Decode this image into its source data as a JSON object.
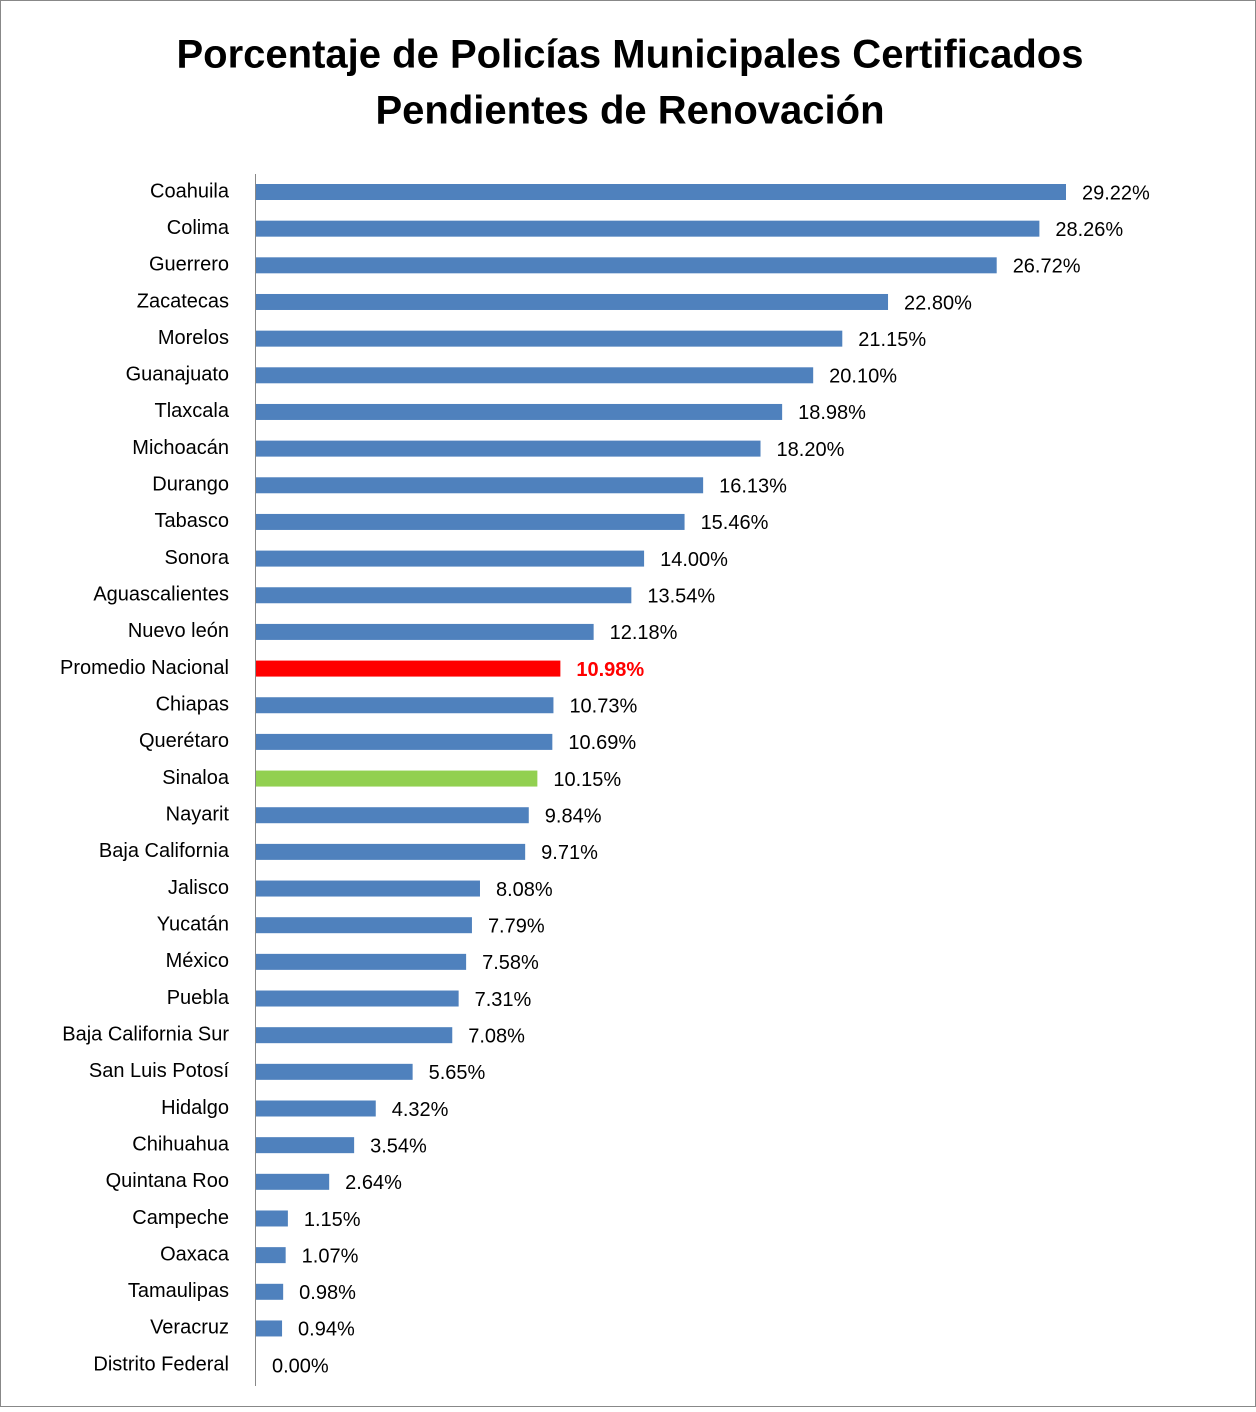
{
  "chart_data": {
    "type": "barh",
    "title": [
      "Porcentaje de Policías Municipales Certificados",
      "Pendientes de Renovación"
    ],
    "categories": [
      "Coahuila",
      "Colima",
      "Guerrero",
      "Zacatecas",
      "Morelos",
      "Guanajuato",
      "Tlaxcala",
      "Michoacán",
      "Durango",
      "Tabasco",
      "Sonora",
      "Aguascalientes",
      "Nuevo león",
      "Promedio Nacional",
      "Chiapas",
      "Querétaro",
      "Sinaloa",
      "Nayarit",
      "Baja California",
      "Jalisco",
      "Yucatán",
      "México",
      "Puebla",
      "Baja California Sur",
      "San Luis Potosí",
      "Hidalgo",
      "Chihuahua",
      "Quintana Roo",
      "Campeche",
      "Oaxaca",
      "Tamaulipas",
      "Veracruz",
      "Distrito Federal"
    ],
    "values": [
      29.22,
      28.26,
      26.72,
      22.8,
      21.15,
      20.1,
      18.98,
      18.2,
      16.13,
      15.46,
      14.0,
      13.54,
      12.18,
      10.98,
      10.73,
      10.69,
      10.15,
      9.84,
      9.71,
      8.08,
      7.79,
      7.58,
      7.31,
      7.08,
      5.65,
      4.32,
      3.54,
      2.64,
      1.15,
      1.07,
      0.98,
      0.94,
      0.0
    ],
    "value_labels": [
      "29.22%",
      "28.26%",
      "26.72%",
      "22.80%",
      "21.15%",
      "20.10%",
      "18.98%",
      "18.20%",
      "16.13%",
      "15.46%",
      "14.00%",
      "13.54%",
      "12.18%",
      "10.98%",
      "10.73%",
      "10.69%",
      "10.15%",
      "9.84%",
      "9.71%",
      "8.08%",
      "7.79%",
      "7.58%",
      "7.31%",
      "7.08%",
      "5.65%",
      "4.32%",
      "3.54%",
      "2.64%",
      "1.15%",
      "1.07%",
      "0.98%",
      "0.94%",
      "0.00%"
    ],
    "colors": [
      "#4f81bd",
      "#4f81bd",
      "#4f81bd",
      "#4f81bd",
      "#4f81bd",
      "#4f81bd",
      "#4f81bd",
      "#4f81bd",
      "#4f81bd",
      "#4f81bd",
      "#4f81bd",
      "#4f81bd",
      "#4f81bd",
      "#ff0000",
      "#4f81bd",
      "#4f81bd",
      "#92d050",
      "#4f81bd",
      "#4f81bd",
      "#4f81bd",
      "#4f81bd",
      "#4f81bd",
      "#4f81bd",
      "#4f81bd",
      "#4f81bd",
      "#4f81bd",
      "#4f81bd",
      "#4f81bd",
      "#4f81bd",
      "#4f81bd",
      "#4f81bd",
      "#4f81bd",
      "#4f81bd"
    ],
    "value_label_colors": [
      "#000000",
      "#000000",
      "#000000",
      "#000000",
      "#000000",
      "#000000",
      "#000000",
      "#000000",
      "#000000",
      "#000000",
      "#000000",
      "#000000",
      "#000000",
      "#ff0000",
      "#000000",
      "#000000",
      "#000000",
      "#000000",
      "#000000",
      "#000000",
      "#000000",
      "#000000",
      "#000000",
      "#000000",
      "#000000",
      "#000000",
      "#000000",
      "#000000",
      "#000000",
      "#000000",
      "#000000",
      "#000000",
      "#000000"
    ]
  }
}
